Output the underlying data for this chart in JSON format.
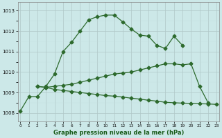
{
  "line1_x": [
    0,
    1,
    2,
    3,
    4,
    5,
    6,
    7,
    8,
    9,
    10,
    11,
    12,
    13,
    14,
    15,
    16,
    17,
    18,
    19
  ],
  "line1_y": [
    1008.1,
    1008.8,
    1008.8,
    1009.3,
    1009.9,
    1011.0,
    1011.45,
    1012.0,
    1012.55,
    1012.7,
    1012.78,
    1012.78,
    1012.45,
    1012.1,
    1011.8,
    1011.75,
    1011.3,
    1011.15,
    1011.75,
    1011.3
  ],
  "line2_x": [
    2,
    3,
    4,
    5,
    6,
    7,
    8,
    9,
    10,
    11,
    12,
    13,
    14,
    15,
    16,
    17,
    18,
    19,
    20,
    21,
    22
  ],
  "line2_y": [
    1009.3,
    1009.25,
    1009.3,
    1009.35,
    1009.4,
    1009.5,
    1009.6,
    1009.7,
    1009.8,
    1009.9,
    1009.95,
    1010.0,
    1010.1,
    1010.2,
    1010.3,
    1010.4,
    1010.4,
    1010.35,
    1010.4,
    1009.3,
    1008.5
  ],
  "line3_x": [
    2,
    3,
    4,
    5,
    6,
    7,
    8,
    9,
    10,
    11,
    12,
    13,
    14,
    15,
    16,
    17,
    18,
    19,
    20,
    21,
    22,
    23
  ],
  "line3_y": [
    1009.3,
    1009.25,
    1009.15,
    1009.1,
    1009.05,
    1009.0,
    1008.95,
    1008.9,
    1008.85,
    1008.82,
    1008.78,
    1008.72,
    1008.68,
    1008.62,
    1008.58,
    1008.52,
    1008.5,
    1008.48,
    1008.47,
    1008.45,
    1008.44,
    1008.42
  ],
  "bg_color": "#cce8e8",
  "line_color": "#2d6a2d",
  "grid_color": "#b0c8c8",
  "grid_minor_color": "#c5dcdc",
  "xlabel": "Graphe pression niveau de la mer (hPa)",
  "xlabel_color": "#1a5c1a",
  "ylabel_ticks": [
    1008,
    1009,
    1010,
    1011,
    1012,
    1013
  ],
  "xticks": [
    0,
    1,
    2,
    3,
    4,
    5,
    6,
    7,
    8,
    9,
    10,
    11,
    12,
    13,
    14,
    15,
    16,
    17,
    18,
    19,
    20,
    21,
    22,
    23
  ],
  "ylim": [
    1007.6,
    1013.4
  ],
  "xlim": [
    -0.3,
    23.3
  ],
  "figsize": [
    3.2,
    2.0
  ],
  "dpi": 100
}
